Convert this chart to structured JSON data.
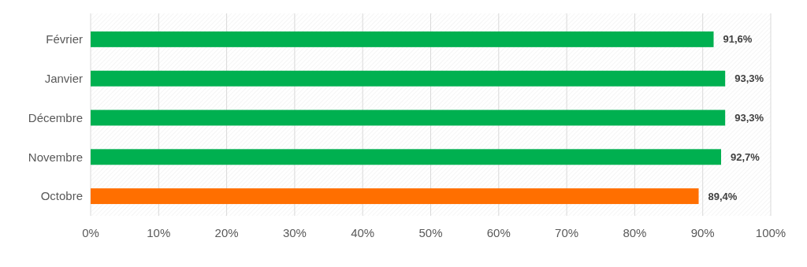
{
  "chart_data": {
    "type": "bar",
    "orientation": "horizontal",
    "categories": [
      "Février",
      "Janvier",
      "Décembre",
      "Novembre",
      "Octobre"
    ],
    "values": [
      91.6,
      93.3,
      93.3,
      92.7,
      89.4
    ],
    "colors": [
      "#00b050",
      "#00b050",
      "#00b050",
      "#00b050",
      "#ff6f00"
    ],
    "value_labels": [
      "91,6%",
      "93,3%",
      "93,3%",
      "92,7%",
      "89,4%"
    ],
    "xlim": [
      0,
      100
    ],
    "xticks": [
      {
        "value": 0,
        "label": "0%"
      },
      {
        "value": 10,
        "label": "10%"
      },
      {
        "value": 20,
        "label": "20%"
      },
      {
        "value": 30,
        "label": "30%"
      },
      {
        "value": 40,
        "label": "40%"
      },
      {
        "value": 50,
        "label": "50%"
      },
      {
        "value": 60,
        "label": "60%"
      },
      {
        "value": 70,
        "label": "70%"
      },
      {
        "value": 80,
        "label": "80%"
      },
      {
        "value": 90,
        "label": "90%"
      },
      {
        "value": 100,
        "label": "100%"
      }
    ],
    "grid": "x"
  }
}
